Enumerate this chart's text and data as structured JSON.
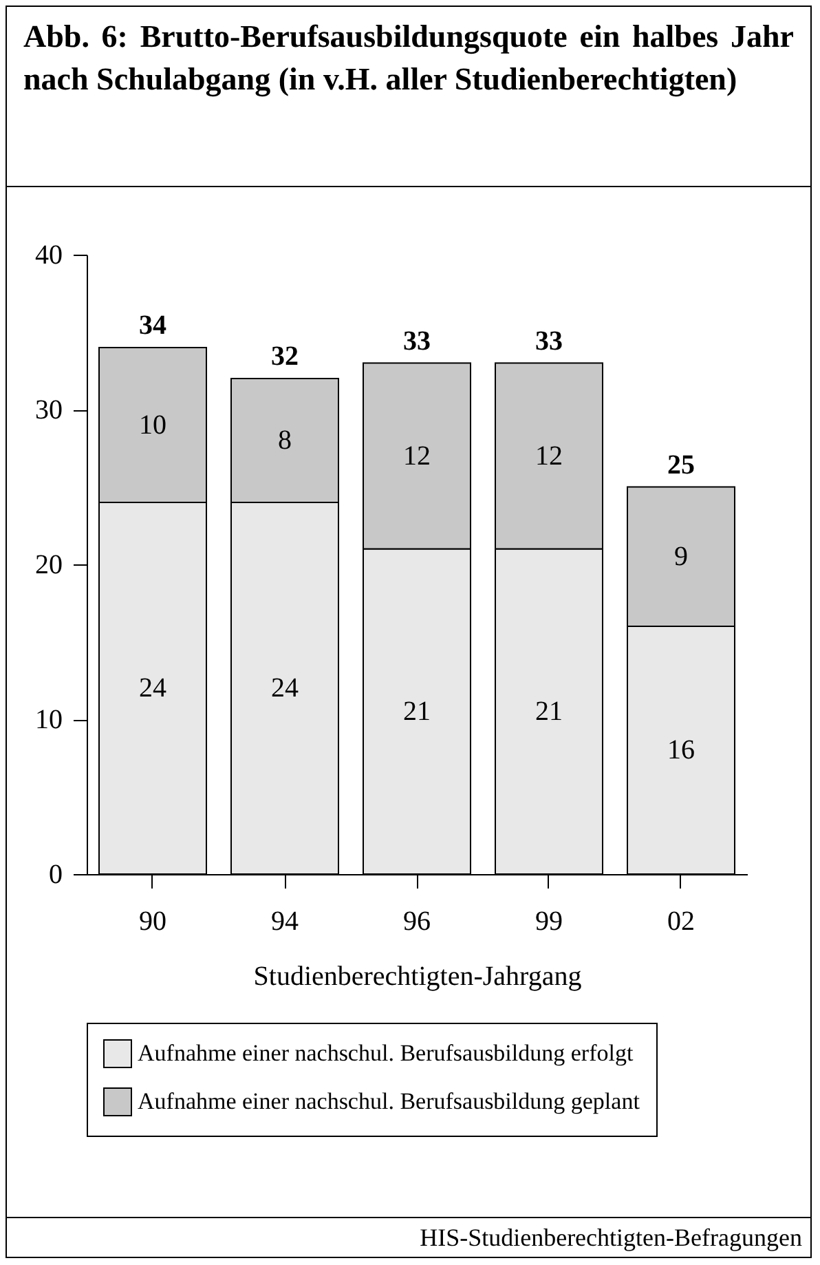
{
  "chart_data": {
    "type": "bar",
    "title": "Abb. 6: Brutto-Berufsausbildungsquote ein halbes Jahr nach Schulabgang (in v.H. aller Studienberechtigten)",
    "xlabel": "Studienberechtigten-Jahrgang",
    "categories": [
      "90",
      "94",
      "96",
      "99",
      "02"
    ],
    "stacked": true,
    "series": [
      {
        "name": "Aufnahme einer nachschul. Berufsausbildung erfolgt",
        "color": "#e8e8e8",
        "values": [
          24,
          24,
          21,
          21,
          16
        ]
      },
      {
        "name": "Aufnahme einer nachschul. Berufsausbildung geplant",
        "color": "#c8c8c8",
        "values": [
          10,
          8,
          12,
          12,
          9
        ]
      }
    ],
    "totals": [
      "34",
      "32",
      "33",
      "33",
      "25"
    ],
    "data_labels": true,
    "ylim": [
      0,
      40
    ],
    "yticks": [
      0,
      10,
      20,
      30,
      40
    ],
    "grid": false,
    "legend": "bottom",
    "annotations": [
      "HIS-Studienberechtigten-Befragungen"
    ]
  }
}
